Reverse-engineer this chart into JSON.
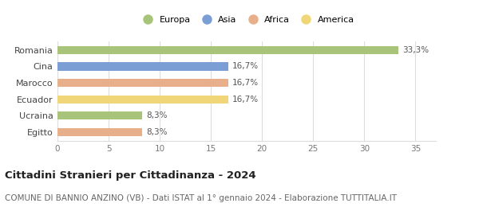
{
  "categories": [
    "Romania",
    "Cina",
    "Marocco",
    "Ecuador",
    "Ucraina",
    "Egitto"
  ],
  "values": [
    33.3,
    16.7,
    16.7,
    16.7,
    8.3,
    8.3
  ],
  "labels": [
    "33,3%",
    "16,7%",
    "16,7%",
    "16,7%",
    "8,3%",
    "8,3%"
  ],
  "colors": [
    "#a8c47a",
    "#7b9fd4",
    "#e8b08a",
    "#f0d678",
    "#a8c47a",
    "#e8b08a"
  ],
  "legend_labels": [
    "Europa",
    "Asia",
    "Africa",
    "America"
  ],
  "legend_colors": [
    "#a8c47a",
    "#7b9fd4",
    "#e8b08a",
    "#f0d678"
  ],
  "xlim": [
    0,
    37
  ],
  "xticks": [
    0,
    5,
    10,
    15,
    20,
    25,
    30,
    35
  ],
  "title": "Cittadini Stranieri per Cittadinanza - 2024",
  "subtitle": "COMUNE DI BANNIO ANZINO (VB) - Dati ISTAT al 1° gennaio 2024 - Elaborazione TUTTITALIA.IT",
  "title_fontsize": 9.5,
  "subtitle_fontsize": 7.5,
  "background_color": "#ffffff",
  "grid_color": "#dddddd",
  "bar_height": 0.5,
  "label_fontsize": 7.5,
  "ytick_fontsize": 8,
  "xtick_fontsize": 7.5
}
